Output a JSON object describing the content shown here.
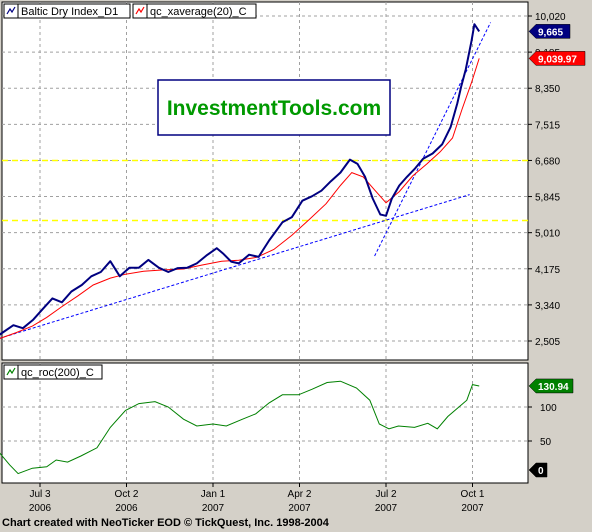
{
  "footer": "Chart created with NeoTicker EOD © TickQuest, Inc. 1998-2004",
  "watermark": "InvestmentTools.com",
  "colors": {
    "price": "#000080",
    "average": "#ff0000",
    "roc": "#008000",
    "trend": "#0000ff",
    "hline": "#ffff00",
    "watermark_text": "#009900",
    "watermark_border": "#000080"
  },
  "chart_data": [
    {
      "type": "line",
      "title": "",
      "legend": {
        "placement": "top-left",
        "entries": [
          "Baltic Dry Index_D1",
          "qc_xaverage(20)_C"
        ]
      },
      "ylim": [
        2200,
        10300
      ],
      "y_ticks": [
        10020,
        9185,
        8350,
        7515,
        6680,
        5845,
        5010,
        4175,
        3340,
        2505
      ],
      "y_tick_labels": [
        "10,020",
        "9,185",
        "8,350",
        "7,515",
        "6,680",
        "5,845",
        "5,010",
        "4,175",
        "3,340",
        "2,505"
      ],
      "x_ticks": [
        {
          "date": "2006-07-03",
          "label": "Jul 3",
          "year": "2006"
        },
        {
          "date": "2006-10-02",
          "label": "Oct 2",
          "year": "2006"
        },
        {
          "date": "2007-01-01",
          "label": "Jan 1",
          "year": "2007"
        },
        {
          "date": "2007-04-02",
          "label": "Apr 2",
          "year": "2007"
        },
        {
          "date": "2007-07-02",
          "label": "Jul 2",
          "year": "2007"
        },
        {
          "date": "2007-10-01",
          "label": "Oct 1",
          "year": "2007"
        }
      ],
      "last_values": [
        {
          "series": "Baltic Dry Index_D1",
          "value": 9665,
          "label": "9,665"
        },
        {
          "series": "qc_xaverage(20)_C",
          "value": 9039.97,
          "label": "9,039.97"
        }
      ],
      "grid": true,
      "horizontal_lines": [
        6680,
        5290
      ],
      "series": [
        {
          "name": "Baltic Dry Index_D1",
          "points": [
            [
              "2006-05-01",
              2400
            ],
            [
              "2006-05-12",
              2510
            ],
            [
              "2006-05-24",
              2690
            ],
            [
              "2006-06-05",
              2870
            ],
            [
              "2006-06-15",
              2800
            ],
            [
              "2006-06-26",
              3000
            ],
            [
              "2006-07-06",
              3250
            ],
            [
              "2006-07-16",
              3490
            ],
            [
              "2006-07-26",
              3400
            ],
            [
              "2006-08-05",
              3650
            ],
            [
              "2006-08-16",
              3800
            ],
            [
              "2006-08-26",
              4000
            ],
            [
              "2006-09-05",
              4100
            ],
            [
              "2006-09-15",
              4350
            ],
            [
              "2006-09-25",
              4000
            ],
            [
              "2006-10-05",
              4200
            ],
            [
              "2006-10-15",
              4200
            ],
            [
              "2006-10-25",
              4380
            ],
            [
              "2006-11-05",
              4200
            ],
            [
              "2006-11-15",
              4100
            ],
            [
              "2006-11-25",
              4190
            ],
            [
              "2006-12-05",
              4200
            ],
            [
              "2006-12-15",
              4300
            ],
            [
              "2006-12-25",
              4480
            ],
            [
              "2007-01-05",
              4650
            ],
            [
              "2007-01-12",
              4520
            ],
            [
              "2007-01-20",
              4340
            ],
            [
              "2007-01-28",
              4300
            ],
            [
              "2007-02-08",
              4500
            ],
            [
              "2007-02-18",
              4450
            ],
            [
              "2007-03-01",
              4830
            ],
            [
              "2007-03-15",
              5250
            ],
            [
              "2007-03-25",
              5370
            ],
            [
              "2007-04-05",
              5750
            ],
            [
              "2007-04-15",
              5850
            ],
            [
              "2007-04-25",
              5980
            ],
            [
              "2007-05-05",
              6200
            ],
            [
              "2007-05-15",
              6400
            ],
            [
              "2007-05-25",
              6700
            ],
            [
              "2007-06-02",
              6600
            ],
            [
              "2007-06-10",
              6300
            ],
            [
              "2007-06-18",
              5800
            ],
            [
              "2007-06-26",
              5430
            ],
            [
              "2007-07-02",
              5400
            ],
            [
              "2007-07-08",
              5790
            ],
            [
              "2007-07-16",
              6100
            ],
            [
              "2007-07-24",
              6300
            ],
            [
              "2007-08-01",
              6480
            ],
            [
              "2007-08-10",
              6720
            ],
            [
              "2007-08-20",
              6840
            ],
            [
              "2007-08-30",
              7050
            ],
            [
              "2007-09-08",
              7450
            ],
            [
              "2007-09-15",
              8000
            ],
            [
              "2007-09-19",
              8380
            ],
            [
              "2007-09-24",
              8790
            ],
            [
              "2007-09-30",
              9440
            ],
            [
              "2007-10-03",
              9830
            ],
            [
              "2007-10-08",
              9665
            ]
          ]
        },
        {
          "name": "qc_xaverage(20)_C",
          "points": [
            [
              "2006-05-01",
              2410
            ],
            [
              "2006-05-20",
              2550
            ],
            [
              "2006-06-08",
              2700
            ],
            [
              "2006-06-25",
              2850
            ],
            [
              "2006-07-10",
              3050
            ],
            [
              "2006-07-26",
              3300
            ],
            [
              "2006-08-12",
              3550
            ],
            [
              "2006-08-28",
              3800
            ],
            [
              "2006-09-15",
              3960
            ],
            [
              "2006-10-01",
              4050
            ],
            [
              "2006-10-20",
              4120
            ],
            [
              "2006-11-10",
              4150
            ],
            [
              "2006-12-01",
              4170
            ],
            [
              "2006-12-20",
              4260
            ],
            [
              "2007-01-10",
              4350
            ],
            [
              "2007-01-28",
              4370
            ],
            [
              "2007-02-16",
              4440
            ],
            [
              "2007-03-06",
              4620
            ],
            [
              "2007-03-25",
              4950
            ],
            [
              "2007-04-12",
              5310
            ],
            [
              "2007-04-30",
              5680
            ],
            [
              "2007-05-15",
              6100
            ],
            [
              "2007-05-27",
              6400
            ],
            [
              "2007-06-08",
              6300
            ],
            [
              "2007-06-20",
              6000
            ],
            [
              "2007-07-02",
              5700
            ],
            [
              "2007-07-16",
              5960
            ],
            [
              "2007-07-30",
              6320
            ],
            [
              "2007-08-14",
              6600
            ],
            [
              "2007-08-28",
              6880
            ],
            [
              "2007-09-10",
              7200
            ],
            [
              "2007-09-20",
              7860
            ],
            [
              "2007-09-30",
              8480
            ],
            [
              "2007-10-08",
              9040
            ]
          ]
        }
      ],
      "trendlines": [
        [
          [
            "2006-05-01",
            2430
          ],
          [
            "2007-09-28",
            5890
          ]
        ],
        [
          [
            "2007-06-20",
            4470
          ],
          [
            "2007-10-20",
            9870
          ]
        ]
      ]
    },
    {
      "type": "line",
      "legend": {
        "placement": "top-left",
        "entries": [
          "qc_roc(200)_C"
        ]
      },
      "ylim": [
        0,
        150
      ],
      "y_ticks": [
        100,
        50
      ],
      "y_tick_labels": [
        "100",
        "50"
      ],
      "last_values": [
        {
          "series": "qc_roc(200)_C",
          "value": 130.94,
          "label": "130.94"
        },
        {
          "series": "zero",
          "value": 0,
          "label": "0"
        }
      ],
      "series": [
        {
          "name": "qc_roc(200)_C",
          "points": [
            [
              "2006-05-01",
              40
            ],
            [
              "2006-05-10",
              48
            ],
            [
              "2006-05-20",
              35
            ],
            [
              "2006-06-01",
              15
            ],
            [
              "2006-06-10",
              2
            ],
            [
              "2006-06-25",
              10
            ],
            [
              "2006-07-10",
              12
            ],
            [
              "2006-07-20",
              22
            ],
            [
              "2006-08-01",
              19
            ],
            [
              "2006-08-15",
              28
            ],
            [
              "2006-09-01",
              40
            ],
            [
              "2006-09-15",
              70
            ],
            [
              "2006-10-01",
              95
            ],
            [
              "2006-10-15",
              105
            ],
            [
              "2006-11-01",
              108
            ],
            [
              "2006-11-15",
              100
            ],
            [
              "2006-12-01",
              82
            ],
            [
              "2006-12-15",
              72
            ],
            [
              "2007-01-01",
              75
            ],
            [
              "2007-01-15",
              72
            ],
            [
              "2007-02-01",
              82
            ],
            [
              "2007-02-15",
              90
            ],
            [
              "2007-03-01",
              106
            ],
            [
              "2007-03-15",
              118
            ],
            [
              "2007-04-01",
              118
            ],
            [
              "2007-04-15",
              126
            ],
            [
              "2007-05-01",
              136
            ],
            [
              "2007-05-15",
              138
            ],
            [
              "2007-06-01",
              128
            ],
            [
              "2007-06-15",
              110
            ],
            [
              "2007-06-25",
              75
            ],
            [
              "2007-07-05",
              68
            ],
            [
              "2007-07-15",
              72
            ],
            [
              "2007-08-01",
              70
            ],
            [
              "2007-08-15",
              76
            ],
            [
              "2007-08-25",
              68
            ],
            [
              "2007-09-05",
              86
            ],
            [
              "2007-09-15",
              98
            ],
            [
              "2007-09-25",
              110
            ],
            [
              "2007-10-01",
              133
            ],
            [
              "2007-10-08",
              130.94
            ]
          ]
        }
      ]
    }
  ]
}
